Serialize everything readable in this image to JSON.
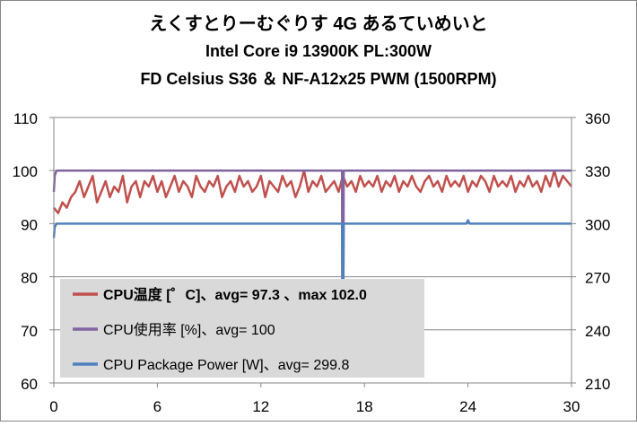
{
  "chart_data": {
    "type": "line",
    "title_lines": [
      "えくすとりーむぐりす 4G あるていめいと",
      "Intel Core i9 13900K PL:300W",
      "FD Celsius S36 ＆ NF-A12x25 PWM (1500RPM)"
    ],
    "x": {
      "min": 0,
      "max": 30,
      "ticks": [
        0,
        6,
        12,
        18,
        24,
        30
      ],
      "tick_labels": [
        "0",
        "6",
        "12",
        "18",
        "24",
        "30"
      ]
    },
    "y_left": {
      "min": 60,
      "max": 110,
      "ticks": [
        60,
        70,
        80,
        90,
        100,
        110
      ],
      "tick_labels": [
        "60",
        "70",
        "80",
        "90",
        "100",
        "110"
      ]
    },
    "y_right": {
      "min": 210,
      "max": 360,
      "ticks": [
        210,
        240,
        270,
        300,
        330,
        360
      ],
      "tick_labels": [
        "210",
        "240",
        "270",
        "300",
        "330",
        "360"
      ]
    },
    "grid": {
      "horizontal": true,
      "vertical": false
    },
    "legend_position": "bottom-left inside plot",
    "series": [
      {
        "name": "CPU温度 [゜C]、avg= 97.3 、max 102.0",
        "axis": "left",
        "color": "#c0504d",
        "bold": true,
        "x": [
          0,
          0.25,
          0.5,
          0.75,
          1.0,
          1.25,
          1.5,
          1.75,
          2.0,
          2.25,
          2.5,
          2.75,
          3.0,
          3.25,
          3.5,
          3.75,
          4.0,
          4.25,
          4.5,
          4.75,
          5.0,
          5.25,
          5.5,
          5.75,
          6.0,
          6.25,
          6.5,
          6.75,
          7.0,
          7.25,
          7.5,
          7.75,
          8.0,
          8.25,
          8.5,
          8.75,
          9.0,
          9.25,
          9.5,
          9.75,
          10.0,
          10.25,
          10.5,
          10.75,
          11.0,
          11.25,
          11.5,
          11.75,
          12.0,
          12.25,
          12.5,
          12.75,
          13.0,
          13.25,
          13.5,
          13.75,
          14.0,
          14.25,
          14.5,
          14.75,
          15.0,
          15.25,
          15.5,
          15.75,
          16.0,
          16.25,
          16.5,
          16.75,
          17.0,
          17.25,
          17.5,
          17.75,
          18.0,
          18.25,
          18.5,
          18.75,
          19.0,
          19.25,
          19.5,
          19.75,
          20.0,
          20.25,
          20.5,
          20.75,
          21.0,
          21.25,
          21.5,
          21.75,
          22.0,
          22.25,
          22.5,
          22.75,
          23.0,
          23.25,
          23.5,
          23.75,
          24.0,
          24.25,
          24.5,
          24.75,
          25.0,
          25.25,
          25.5,
          25.75,
          26.0,
          26.25,
          26.5,
          26.75,
          27.0,
          27.25,
          27.5,
          27.75,
          28.0,
          28.25,
          28.5,
          28.75,
          29.0,
          29.25,
          29.5,
          29.75,
          30.0
        ],
        "values": [
          93,
          92,
          94,
          93,
          95,
          96,
          98,
          95,
          97,
          99,
          94,
          96,
          98,
          95,
          97,
          96,
          99,
          94,
          97,
          98,
          95,
          98,
          97,
          99,
          96,
          98,
          95,
          97,
          99,
          96,
          98,
          97,
          95,
          99,
          97,
          96,
          98,
          97,
          99,
          95,
          97,
          98,
          96,
          99,
          97,
          98,
          96,
          97,
          99,
          95,
          98,
          97,
          96,
          99,
          97,
          98,
          95,
          97,
          100,
          96,
          98,
          97,
          99,
          96,
          97,
          98,
          96,
          99,
          97,
          98,
          96,
          99,
          97,
          98,
          97,
          99,
          96,
          98,
          97,
          99,
          96,
          98,
          97,
          99,
          97,
          96,
          98,
          99,
          97,
          98,
          96,
          99,
          97,
          98,
          97,
          99,
          96,
          98,
          97,
          99,
          98,
          96,
          99,
          97,
          98,
          97,
          99,
          96,
          98,
          97,
          99,
          97,
          98,
          96,
          99,
          97,
          100,
          97,
          99,
          98,
          97
        ]
      },
      {
        "name": "CPU使用率  [%]、avg= 100",
        "axis": "left",
        "color": "#8064a2",
        "bold": false,
        "x": [
          0,
          0.05,
          0.15,
          0.3,
          16.7,
          16.72,
          16.78,
          16.8,
          30
        ],
        "values": [
          96,
          99,
          100,
          100,
          100,
          72,
          72,
          100,
          100
        ]
      },
      {
        "name": "CPU Package Power [W]、avg= 299.8",
        "axis": "right",
        "color": "#4f81bd",
        "bold": false,
        "x": [
          0,
          0.05,
          0.15,
          0.3,
          16.7,
          16.72,
          16.78,
          16.8,
          23.9,
          24.0,
          24.1,
          30
        ],
        "values": [
          292,
          298,
          300,
          300,
          300,
          268,
          268,
          300,
          300,
          302,
          300,
          300
        ]
      }
    ]
  }
}
